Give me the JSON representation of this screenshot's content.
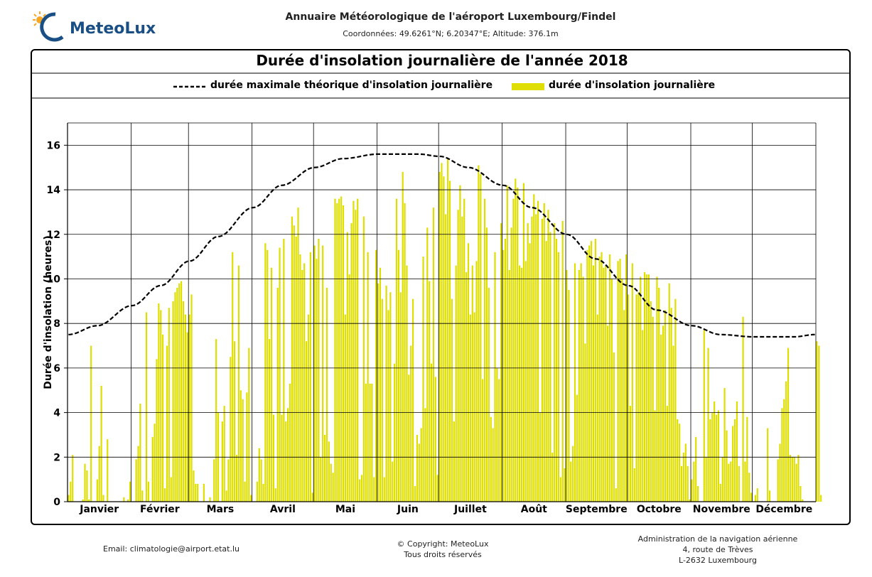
{
  "header": {
    "logo_text": "MeteoLux",
    "title": "Annuaire Météorologique de l'aéroport Luxembourg/Findel",
    "subtitle": "Coordonnées: 49.6261°N; 6.20347°E; Altitude: 376.1m"
  },
  "colors": {
    "bars": "#dede00",
    "max_line": "#000000",
    "logo": "#1a4f86",
    "sun": "#f5a623"
  },
  "footer": {
    "email": "Email: climatologie@airport.etat.lu",
    "copyright_line1": "© Copyright: MeteoLux",
    "copyright_line2": "Tous droits réservés",
    "address_line1": "Administration de la navigation aérienne",
    "address_line2": "4, route de Trèves",
    "address_line3": "L-2632 Luxembourg"
  },
  "chart_data": {
    "type": "bar",
    "title": "Durée d'insolation journalière de l'année 2018",
    "ylabel": "Durée d'insolation (heures)",
    "xlabel": "",
    "ylim": [
      0,
      17
    ],
    "yticks": [
      0,
      2,
      4,
      6,
      8,
      10,
      12,
      14,
      16
    ],
    "grid": true,
    "legend_position": "top",
    "months": [
      "Janvier",
      "Février",
      "Mars",
      "Avril",
      "Mai",
      "Juin",
      "Juillet",
      "Août",
      "Septembre",
      "Octobre",
      "Novembre",
      "Décembre"
    ],
    "month_days": [
      31,
      28,
      31,
      30,
      31,
      30,
      31,
      31,
      30,
      31,
      30,
      31
    ],
    "series": [
      {
        "name": "durée maximale théorique d'insolation journalière",
        "style": "dashed-line",
        "x": [
          1,
          15,
          32,
          46,
          60,
          74,
          91,
          105,
          121,
          135,
          152,
          166,
          172,
          182,
          196,
          213,
          227,
          244,
          258,
          274,
          288,
          305,
          319,
          335,
          349,
          355,
          365
        ],
        "values": [
          7.5,
          7.9,
          8.8,
          9.7,
          10.8,
          11.9,
          13.2,
          14.2,
          15.0,
          15.4,
          15.6,
          15.6,
          15.6,
          15.5,
          15.0,
          14.2,
          13.2,
          12.0,
          10.9,
          9.7,
          8.6,
          7.9,
          7.5,
          7.4,
          7.4,
          7.4,
          7.5
        ]
      },
      {
        "name": "durée d'insolation journalière",
        "style": "bars",
        "x_unit": "day of year (1-365)",
        "values": [
          0.3,
          0.9,
          2.1,
          0.0,
          0.0,
          0.0,
          0.0,
          0.1,
          1.7,
          1.4,
          0.1,
          7.0,
          0.0,
          0.0,
          1.0,
          2.5,
          5.2,
          0.3,
          0.0,
          2.8,
          0.0,
          0.0,
          0.0,
          0.0,
          0.0,
          0.0,
          0.0,
          0.2,
          0.0,
          0.1,
          0.9,
          0.0,
          0.0,
          1.9,
          2.5,
          4.4,
          0.5,
          0.0,
          8.5,
          0.9,
          0.0,
          2.9,
          3.5,
          6.4,
          8.9,
          8.6,
          7.5,
          0.6,
          7.0,
          8.7,
          1.1,
          9.0,
          9.4,
          9.6,
          9.8,
          9.9,
          9.0,
          8.4,
          7.6,
          8.4,
          9.3,
          1.4,
          0.8,
          0.8,
          0.0,
          0.0,
          0.8,
          0.0,
          0.0,
          0.2,
          0.0,
          1.9,
          7.3,
          4.0,
          0.0,
          3.6,
          4.3,
          0.5,
          1.9,
          6.5,
          11.2,
          7.2,
          2.1,
          10.6,
          5.0,
          4.6,
          0.9,
          4.9,
          6.9,
          0.3,
          0.0,
          0.0,
          0.9,
          2.4,
          1.9,
          0.8,
          11.6,
          11.3,
          7.3,
          10.5,
          3.9,
          0.6,
          9.6,
          11.4,
          3.9,
          11.8,
          3.6,
          4.2,
          5.3,
          12.8,
          12.4,
          11.9,
          13.2,
          11.1,
          10.4,
          10.7,
          7.2,
          8.4,
          11.2,
          0.4,
          11.5,
          10.9,
          11.8,
          2.0,
          11.5,
          3.0,
          9.6,
          2.7,
          1.7,
          1.3,
          13.6,
          13.4,
          13.6,
          13.7,
          13.3,
          8.4,
          12.1,
          10.2,
          12.5,
          13.5,
          13.1,
          13.6,
          1.0,
          1.2,
          12.8,
          5.3,
          11.2,
          5.3,
          5.3,
          1.1,
          11.3,
          9.8,
          10.5,
          9.1,
          1.1,
          9.7,
          8.6,
          9.4,
          1.8,
          6.2,
          13.6,
          11.3,
          9.4,
          14.8,
          13.4,
          10.6,
          5.7,
          7.0,
          9.1,
          0.7,
          3.0,
          2.6,
          3.3,
          11.0,
          4.2,
          12.3,
          9.9,
          6.2,
          13.2,
          5.6,
          1.2,
          14.8,
          15.2,
          14.6,
          12.9,
          15.4,
          14.4,
          9.1,
          3.6,
          10.6,
          13.1,
          14.2,
          12.8,
          13.6,
          10.3,
          11.6,
          8.4,
          10.6,
          8.5,
          10.8,
          15.1,
          14.7,
          5.5,
          13.6,
          12.3,
          9.6,
          3.8,
          3.3,
          11.2,
          6.0,
          5.5,
          12.5,
          11.3,
          11.8,
          14.2,
          10.4,
          12.3,
          13.6,
          14.5,
          14.1,
          10.6,
          10.5,
          14.3,
          10.8,
          12.5,
          11.6,
          12.8,
          13.8,
          12.9,
          13.5,
          4.0,
          12.7,
          13.4,
          11.7,
          13.1,
          12.1,
          2.2,
          12.5,
          11.8,
          11.2,
          1.1,
          12.6,
          1.5,
          10.4,
          9.5,
          1.8,
          2.5,
          10.7,
          4.8,
          10.4,
          10.7,
          10.1,
          7.1,
          11.3,
          11.5,
          11.7,
          10.6,
          11.8,
          8.4,
          11.0,
          11.2,
          10.5,
          10.6,
          7.9,
          11.1,
          10.0,
          6.7,
          0.6,
          10.8,
          10.9,
          10.0,
          8.6,
          11.1,
          9.3,
          4.3,
          10.7,
          1.5,
          9.3,
          9.4,
          10.1,
          7.7,
          10.3,
          10.2,
          10.2,
          9.0,
          8.3,
          4.1,
          10.1,
          9.6,
          7.5,
          7.9,
          8.6,
          4.3,
          9.8,
          8.7,
          7.0,
          9.1,
          3.7,
          3.5,
          1.6,
          2.2,
          2.6,
          1.6,
          0.1,
          1.0,
          1.8,
          2.9,
          0.7,
          0.0,
          0.0,
          7.7,
          2.0,
          6.9,
          3.7,
          4.0,
          4.5,
          3.9,
          4.1,
          0.8,
          2.0,
          5.1,
          3.2,
          1.7,
          1.8,
          3.4,
          3.7,
          4.5,
          1.6,
          0.0,
          8.3,
          1.8,
          3.8,
          1.3,
          0.4,
          0.0,
          0.3,
          0.6,
          0.0,
          0.0,
          0.0,
          0.0,
          3.3,
          0.5,
          0.0,
          0.0,
          0.0,
          1.9,
          2.6,
          4.2,
          4.6,
          5.4,
          6.9,
          2.1,
          2.0,
          2.0,
          1.7,
          2.1,
          0.7,
          0.1,
          0.0,
          0.0,
          0.0,
          0.0,
          0.0,
          0.0,
          7.2,
          7.0,
          0.3,
          0.0
        ]
      }
    ]
  }
}
